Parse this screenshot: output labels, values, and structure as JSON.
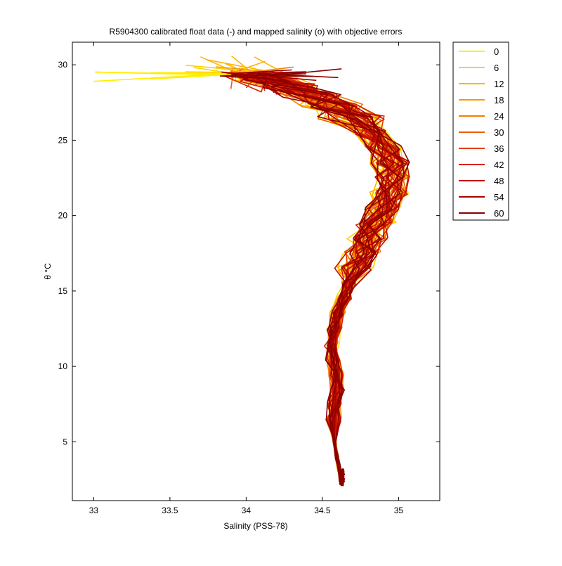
{
  "chart_data": {
    "type": "line",
    "title": "R5904300 calibrated float data (-) and mapped salinity (o) with objective errors",
    "xlabel": "Salinity (PSS-78)",
    "ylabel": "θ °C",
    "xlim": [
      32.86,
      35.27
    ],
    "ylim": [
      1.1,
      31.5
    ],
    "xticks": [
      "33",
      "33.5",
      "34",
      "34.5",
      "35"
    ],
    "xtick_values": [
      33,
      33.5,
      34,
      34.5,
      35
    ],
    "yticks": [
      "5",
      "10",
      "15",
      "20",
      "25",
      "30"
    ],
    "ytick_values": [
      5,
      10,
      15,
      20,
      25,
      30
    ],
    "grid": false,
    "legend_position": "outside-top-right",
    "legend": [
      {
        "label": "0",
        "color": "#ffee00"
      },
      {
        "label": "6",
        "color": "#ffd200"
      },
      {
        "label": "12",
        "color": "#ffb400"
      },
      {
        "label": "18",
        "color": "#f99a00"
      },
      {
        "label": "24",
        "color": "#f27f00"
      },
      {
        "label": "30",
        "color": "#ea6100"
      },
      {
        "label": "36",
        "color": "#e03f00"
      },
      {
        "label": "42",
        "color": "#d32200"
      },
      {
        "label": "48",
        "color": "#c50e00"
      },
      {
        "label": "54",
        "color": "#a80000"
      },
      {
        "label": "60",
        "color": "#8b0000"
      }
    ],
    "base_profile": {
      "theta": [
        2.2,
        2.6,
        3.2,
        4.0,
        5.0,
        6.5,
        7.5,
        8.5,
        9.5,
        10.5,
        11.5,
        12.5,
        13.5,
        14.5,
        15.5,
        16.5,
        17.5,
        18.5,
        19.5,
        20.5,
        21.5,
        22.5,
        23.5,
        24.5,
        25.5,
        26.5,
        27.3,
        28.0,
        28.6,
        29.0,
        29.4
      ],
      "salinity": [
        34.63,
        34.62,
        34.61,
        34.595,
        34.58,
        34.575,
        34.585,
        34.6,
        34.59,
        34.57,
        34.56,
        34.58,
        34.6,
        34.64,
        34.68,
        34.72,
        34.76,
        34.8,
        34.85,
        34.9,
        34.94,
        34.96,
        34.95,
        34.9,
        34.82,
        34.7,
        34.56,
        34.42,
        34.28,
        34.15,
        34.05
      ]
    },
    "series": [
      {
        "name": "0",
        "color": "#ffee00",
        "surface_salinity": 33.0,
        "surface_theta": 29.3
      },
      {
        "name": "6",
        "color": "#ffd200",
        "surface_salinity": 33.6,
        "surface_theta": 29.8
      },
      {
        "name": "12",
        "color": "#ffb400",
        "surface_salinity": 33.7,
        "surface_theta": 30.3
      },
      {
        "name": "18",
        "color": "#f99a00",
        "surface_salinity": 33.8,
        "surface_theta": 29.6
      },
      {
        "name": "24",
        "color": "#f27f00",
        "surface_salinity": 33.9,
        "surface_theta": 29.5
      },
      {
        "name": "30",
        "color": "#ea6100",
        "surface_salinity": 33.9,
        "surface_theta": 28.6
      },
      {
        "name": "36",
        "color": "#e03f00",
        "surface_salinity": 34.0,
        "surface_theta": 28.3
      },
      {
        "name": "42",
        "color": "#d32200",
        "surface_salinity": 34.1,
        "surface_theta": 28.0
      },
      {
        "name": "48",
        "color": "#c50e00",
        "surface_salinity": 34.2,
        "surface_theta": 28.3
      },
      {
        "name": "54",
        "color": "#a80000",
        "surface_salinity": 34.1,
        "surface_theta": 29.2
      },
      {
        "name": "60",
        "color": "#8b0000",
        "surface_salinity": 34.3,
        "surface_theta": 29.4
      }
    ]
  }
}
